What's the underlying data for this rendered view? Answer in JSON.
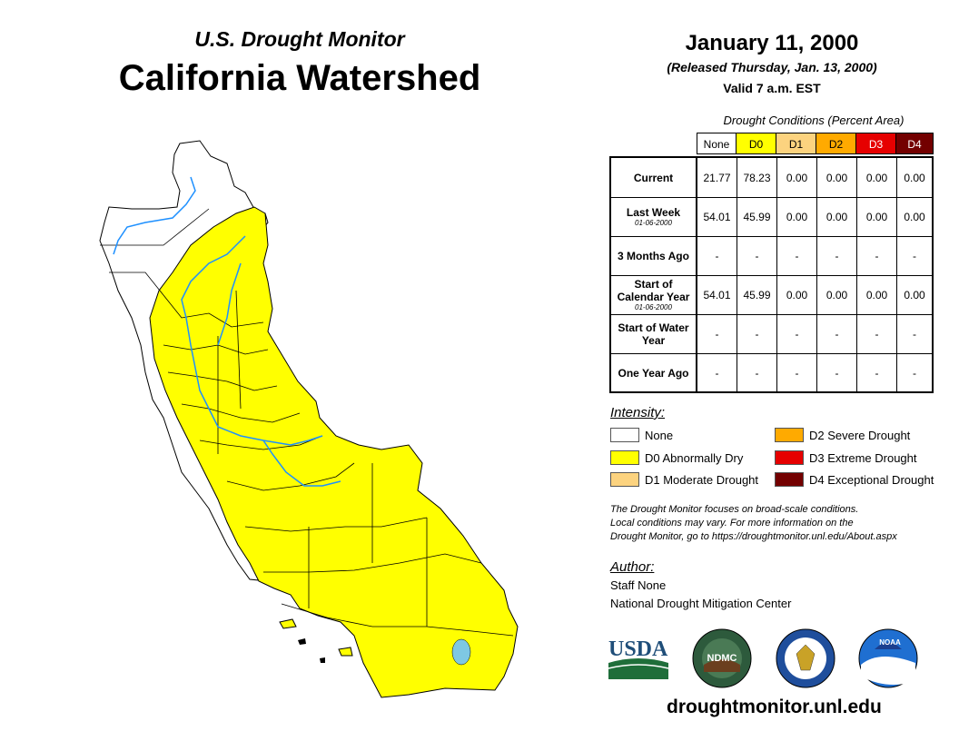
{
  "header": {
    "subtitle": "U.S. Drought Monitor",
    "title": "California Watershed",
    "date": "January 11, 2000",
    "released": "(Released Thursday, Jan. 13, 2000)",
    "valid": "Valid 7 a.m. EST"
  },
  "table": {
    "caption": "Drought Conditions (Percent Area)",
    "columns": [
      {
        "label": "None",
        "color": "#ffffff",
        "text_color": "#000000"
      },
      {
        "label": "D0",
        "color": "#ffff00",
        "text_color": "#000000"
      },
      {
        "label": "D1",
        "color": "#fcd37f",
        "text_color": "#000000"
      },
      {
        "label": "D2",
        "color": "#ffaa00",
        "text_color": "#000000"
      },
      {
        "label": "D3",
        "color": "#e60000",
        "text_color": "#ffffff"
      },
      {
        "label": "D4",
        "color": "#730000",
        "text_color": "#ffffff"
      }
    ],
    "rows": [
      {
        "label": "Current",
        "sub": "",
        "values": [
          "21.77",
          "78.23",
          "0.00",
          "0.00",
          "0.00",
          "0.00"
        ]
      },
      {
        "label": "Last Week",
        "sub": "01-06-2000",
        "values": [
          "54.01",
          "45.99",
          "0.00",
          "0.00",
          "0.00",
          "0.00"
        ]
      },
      {
        "label": "3 Months Ago",
        "sub": "",
        "values": [
          "-",
          "-",
          "-",
          "-",
          "-",
          "-"
        ]
      },
      {
        "label": "Start of Calendar Year",
        "sub": "01-06-2000",
        "values": [
          "54.01",
          "45.99",
          "0.00",
          "0.00",
          "0.00",
          "0.00"
        ]
      },
      {
        "label": "Start of Water Year",
        "sub": "",
        "values": [
          "-",
          "-",
          "-",
          "-",
          "-",
          "-"
        ]
      },
      {
        "label": "One Year Ago",
        "sub": "",
        "values": [
          "-",
          "-",
          "-",
          "-",
          "-",
          "-"
        ]
      }
    ]
  },
  "legend": {
    "title": "Intensity:",
    "items": [
      {
        "label": "None",
        "color": "#ffffff"
      },
      {
        "label": "D0 Abnormally Dry",
        "color": "#ffff00"
      },
      {
        "label": "D1 Moderate Drought",
        "color": "#fcd37f"
      },
      {
        "label": "D2 Severe Drought",
        "color": "#ffaa00"
      },
      {
        "label": "D3 Extreme Drought",
        "color": "#e60000"
      },
      {
        "label": "D4 Exceptional Drought",
        "color": "#730000"
      }
    ]
  },
  "note": {
    "line1": "The Drought Monitor focuses on broad-scale conditions.",
    "line2": "Local conditions may vary. For more information on the",
    "line3": "Drought Monitor, go to https://droughtmonitor.unl.edu/About.aspx"
  },
  "author": {
    "label": "Author:",
    "name": "Staff None",
    "org": "National Drought Mitigation Center"
  },
  "logos": {
    "usda": "USDA",
    "ndmc": "NDMC",
    "noaa": "NOAA"
  },
  "footer": {
    "url": "droughtmonitor.unl.edu"
  },
  "map_colors": {
    "dry": "#ffff00",
    "none": "#ffffff",
    "water": "#1e90ff",
    "stroke": "#000000"
  }
}
